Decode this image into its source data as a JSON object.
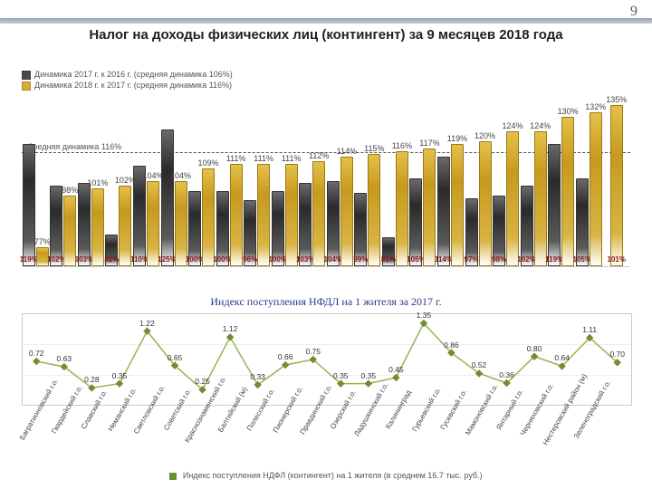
{
  "page_number": "9",
  "title": "Налог на доходы физических лиц (контингент) за 9 месяцев 2018 года",
  "subtitle": "Индекс поступления НФДЛ на 1 жителя за 2017 г.",
  "top_chart": {
    "type": "bar",
    "legend_a": "Динамика 2017 г. к 2016 г. (средняя динамика 106%)",
    "legend_b": "Динамика 2018 г. к 2017 г. (средняя динамика 116%)",
    "refline_label": "Средняя динамика 116%",
    "refline_value": 116,
    "color_a": "#4a4a4a",
    "color_b": "#d6ad3a",
    "ylim": [
      70,
      140
    ],
    "series_bottom_color": "#8a1515",
    "categories": [
      "Багратионовский г.о.",
      "Гвардейский г.о.",
      "Славский г.о.",
      "Неманский г.о.",
      "Светловский г.о.",
      "Советский г.о.",
      "Краснознаменский г.о.",
      "Балтийский м.р-н",
      "Полесский г.о.",
      "Пионерский г.о.",
      "Правдинский г.о.",
      "Озерский г.о.",
      "Ладушкинский г.о.",
      "Калининград",
      "Гурьевский г.о.",
      "Гусевский г.о.",
      "Мамоновский г.о.",
      "Янтарный г.о.",
      "Черняховский г.о.",
      "Нестеровский г.о.",
      "Зеленоградский г.о."
    ],
    "values_a": [
      119,
      102,
      103,
      82,
      110,
      125,
      100,
      100,
      96,
      100,
      103,
      104,
      99,
      81,
      105,
      114,
      97,
      98,
      102,
      119,
      105
    ],
    "values_b": [
      77,
      98,
      101,
      102,
      104,
      104,
      109,
      111,
      111,
      111,
      112,
      114,
      115,
      116,
      117,
      119,
      120,
      124,
      124,
      130,
      132
    ],
    "extra_tail": 135,
    "tail_bottom": 101
  },
  "bottom_chart": {
    "type": "line",
    "legend": "Индекс поступления НДФЛ (контингент) на 1 жителя (в среднем 16.7 тыс. руб.)",
    "marker_color": "#6f8f2f",
    "line_color": "#9ab254",
    "grid_color": "#eeeeee",
    "border_color": "#cccccc",
    "ylim": [
      0,
      1.5
    ],
    "ytick_step": 0.5,
    "label_fontsize": 8.5,
    "categories": [
      "Багратионовский г.о.",
      "Гвардейский г.о.",
      "Славский г.о.",
      "Неманский г.о.",
      "Светловский г.о.",
      "Советский г.о.",
      "Краснознаменский г.о.",
      "Балтийский (м)",
      "Полесский г.о.",
      "Пионерский г.о.",
      "Правдинский г.о.",
      "Озерский г.о.",
      "Ладушкинский г.о.",
      "Калининград",
      "Гурьевский г.о.",
      "Гусевский г.о.",
      "Мамоновский г.о.",
      "Янтарный г.о.",
      "Черняховский г.о.",
      "Нестеровский район (м)",
      "Зеленоградский г.о."
    ],
    "values": [
      0.72,
      0.63,
      0.28,
      0.35,
      1.22,
      0.65,
      0.25,
      1.12,
      0.33,
      0.66,
      0.75,
      0.35,
      0.35,
      0.45,
      1.35,
      0.86,
      0.52,
      0.36,
      0.8,
      0.64,
      1.11
    ],
    "extra_tail": 0.7
  }
}
